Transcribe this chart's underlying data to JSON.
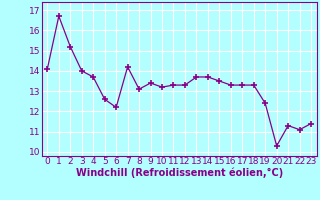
{
  "x": [
    0,
    1,
    2,
    3,
    4,
    5,
    6,
    7,
    8,
    9,
    10,
    11,
    12,
    13,
    14,
    15,
    16,
    17,
    18,
    19,
    20,
    21,
    22,
    23
  ],
  "y": [
    14.1,
    16.7,
    15.2,
    14.0,
    13.7,
    12.6,
    12.2,
    14.2,
    13.1,
    13.4,
    13.2,
    13.3,
    13.3,
    13.7,
    13.7,
    13.5,
    13.3,
    13.3,
    13.3,
    12.4,
    10.3,
    11.3,
    11.1,
    11.4
  ],
  "line_color": "#880088",
  "marker": "+",
  "marker_size": 4,
  "marker_linewidth": 1.2,
  "background_color": "#b3ffff",
  "grid_color": "#ffffff",
  "xlabel": "Windchill (Refroidissement éolien,°C)",
  "xlabel_fontsize": 7,
  "tick_fontsize": 6.5,
  "ylim": [
    9.8,
    17.4
  ],
  "xlim": [
    -0.5,
    23.5
  ],
  "yticks": [
    10,
    11,
    12,
    13,
    14,
    15,
    16,
    17
  ],
  "xticks": [
    0,
    1,
    2,
    3,
    4,
    5,
    6,
    7,
    8,
    9,
    10,
    11,
    12,
    13,
    14,
    15,
    16,
    17,
    18,
    19,
    20,
    21,
    22,
    23
  ]
}
